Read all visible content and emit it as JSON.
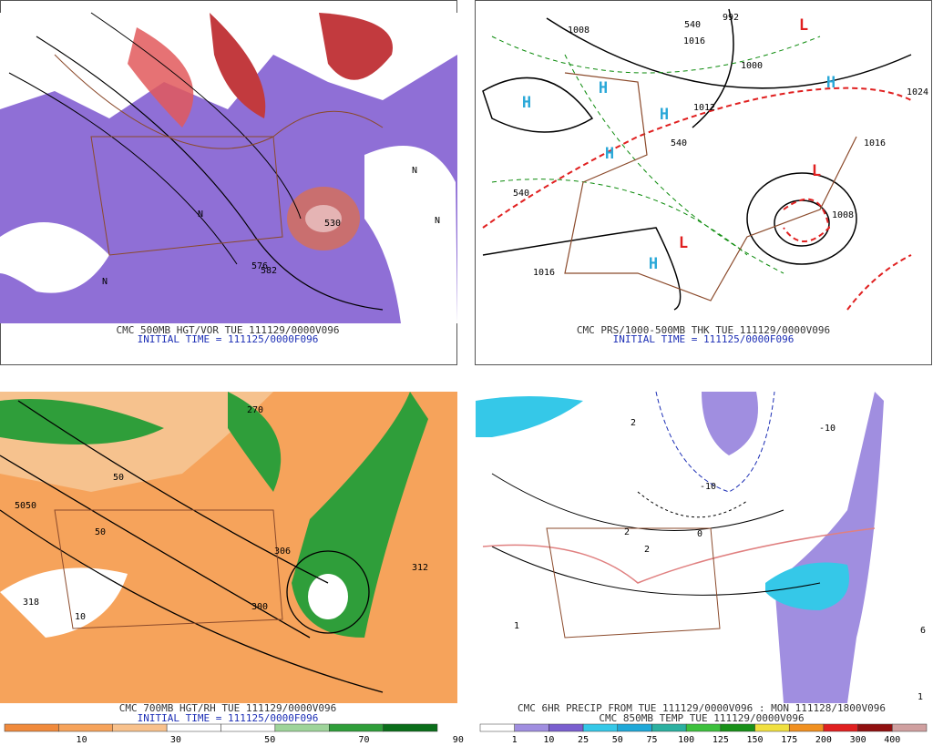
{
  "panels": [
    {
      "caption": "CMC 500MB HGT/VOR TUE 111129/0000V096",
      "initial": "INITIAL TIME = 111125/0000F096",
      "labels": [
        "582",
        "576",
        "530",
        "N",
        "N",
        "N",
        "N"
      ]
    },
    {
      "caption": "CMC PRS/1000-500MB THK TUE 111129/0000V096",
      "initial": "INITIAL TIME = 111125/0000F096",
      "labels": [
        "1008",
        "992",
        "1016",
        "1000",
        "1024",
        "1016",
        "1008",
        "1016",
        "1012",
        "540",
        "540",
        "540"
      ],
      "highs": [
        "H",
        "H",
        "H",
        "H",
        "H",
        "H"
      ],
      "lows": [
        "L",
        "L",
        "L"
      ]
    },
    {
      "caption": "CMC 700MB HGT/RH TUE 111129/0000V096",
      "initial": "INITIAL TIME = 111125/0000F096",
      "labels": [
        "270",
        "306",
        "5050",
        "318",
        "312",
        "300",
        "50",
        "50",
        "10"
      ],
      "colorbar": {
        "labels": [
          "10",
          "30",
          "50",
          "70",
          "90"
        ]
      }
    },
    {
      "caption": "CMC 6HR PRECIP FROM TUE 111129/0000V096 : MON 111128/1800V096",
      "initial": "CMC 850MB TEMP TUE 111129/0000V096",
      "labels": [
        "1",
        "2",
        "2",
        "2",
        "-10",
        "0",
        "6",
        "1",
        "-10"
      ],
      "colorbar": {
        "labels": [
          "1",
          "10",
          "25",
          "50",
          "75",
          "100",
          "125",
          "150",
          "175",
          "200",
          "300",
          "400"
        ]
      }
    }
  ]
}
